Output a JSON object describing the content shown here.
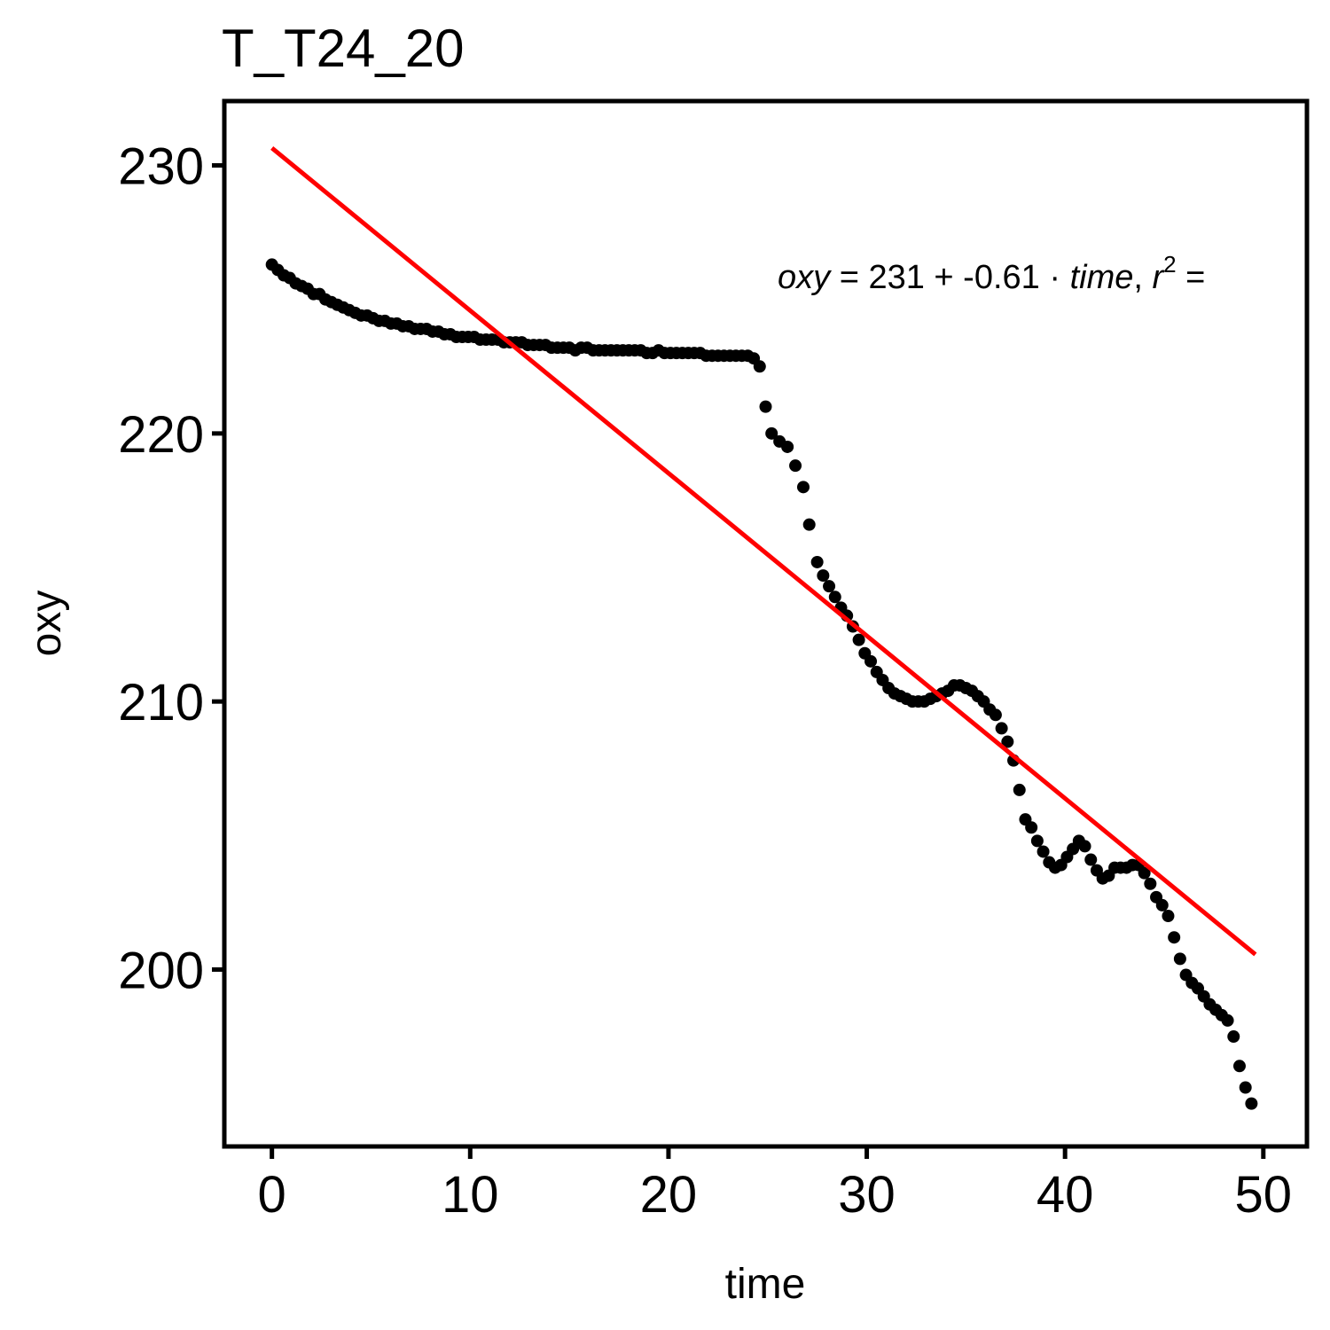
{
  "chart_data": {
    "type": "scatter",
    "title": "T_T24_20",
    "xlabel": "time",
    "ylabel": "oxy",
    "xlim": [
      -2.4,
      52.2
    ],
    "ylim": [
      193.4,
      232.4
    ],
    "x_ticks": [
      0,
      10,
      20,
      30,
      40,
      50
    ],
    "y_ticks": [
      200,
      210,
      220,
      230
    ],
    "grid": false,
    "legend": "none",
    "colors": {
      "points": "#000000",
      "fit_line": "#ff0000",
      "frame": "#000000"
    },
    "fit_line": {
      "intercept": 230.65,
      "slope": -0.6066,
      "x_range": [
        0,
        49.6
      ]
    },
    "annotation": {
      "lhs": "oxy",
      "eq": " = ",
      "intercept": "231",
      "plus": " + ",
      "slope": "-0.61",
      "dot": " · ",
      "var": "time",
      "sep": ",  ",
      "r": "r",
      "sup": "2",
      "eq2": " ="
    },
    "points": [
      [
        0,
        226.3
      ],
      [
        0.3,
        226.1
      ],
      [
        0.6,
        225.9
      ],
      [
        0.9,
        225.8
      ],
      [
        1.2,
        225.6
      ],
      [
        1.5,
        225.5
      ],
      [
        1.8,
        225.4
      ],
      [
        2.1,
        225.2
      ],
      [
        2.4,
        225.2
      ],
      [
        2.7,
        225.0
      ],
      [
        3.0,
        224.9
      ],
      [
        3.3,
        224.8
      ],
      [
        3.6,
        224.7
      ],
      [
        3.9,
        224.6
      ],
      [
        4.2,
        224.5
      ],
      [
        4.5,
        224.4
      ],
      [
        4.8,
        224.4
      ],
      [
        5.1,
        224.3
      ],
      [
        5.4,
        224.2
      ],
      [
        5.7,
        224.2
      ],
      [
        6.0,
        224.1
      ],
      [
        6.3,
        224.1
      ],
      [
        6.6,
        224.0
      ],
      [
        6.9,
        224.0
      ],
      [
        7.2,
        223.9
      ],
      [
        7.5,
        223.9
      ],
      [
        7.8,
        223.9
      ],
      [
        8.1,
        223.8
      ],
      [
        8.4,
        223.8
      ],
      [
        8.7,
        223.7
      ],
      [
        9.0,
        223.7
      ],
      [
        9.3,
        223.6
      ],
      [
        9.6,
        223.6
      ],
      [
        9.9,
        223.6
      ],
      [
        10.2,
        223.6
      ],
      [
        10.5,
        223.5
      ],
      [
        10.8,
        223.5
      ],
      [
        11.1,
        223.5
      ],
      [
        11.4,
        223.5
      ],
      [
        11.7,
        223.4
      ],
      [
        12.0,
        223.4
      ],
      [
        12.3,
        223.4
      ],
      [
        12.6,
        223.4
      ],
      [
        12.9,
        223.3
      ],
      [
        13.2,
        223.3
      ],
      [
        13.5,
        223.3
      ],
      [
        13.8,
        223.3
      ],
      [
        14.1,
        223.2
      ],
      [
        14.4,
        223.2
      ],
      [
        14.7,
        223.2
      ],
      [
        15.0,
        223.2
      ],
      [
        15.3,
        223.1
      ],
      [
        15.6,
        223.2
      ],
      [
        15.9,
        223.2
      ],
      [
        16.2,
        223.1
      ],
      [
        16.5,
        223.1
      ],
      [
        16.8,
        223.1
      ],
      [
        17.1,
        223.1
      ],
      [
        17.4,
        223.1
      ],
      [
        17.7,
        223.1
      ],
      [
        18.0,
        223.1
      ],
      [
        18.3,
        223.1
      ],
      [
        18.6,
        223.1
      ],
      [
        18.9,
        223.0
      ],
      [
        19.2,
        223.0
      ],
      [
        19.5,
        223.1
      ],
      [
        19.8,
        223.0
      ],
      [
        20.1,
        223.0
      ],
      [
        20.4,
        223.0
      ],
      [
        20.7,
        223.0
      ],
      [
        21.0,
        223.0
      ],
      [
        21.3,
        223.0
      ],
      [
        21.6,
        223.0
      ],
      [
        21.9,
        222.9
      ],
      [
        22.2,
        222.9
      ],
      [
        22.5,
        222.9
      ],
      [
        22.8,
        222.9
      ],
      [
        23.1,
        222.9
      ],
      [
        23.4,
        222.9
      ],
      [
        23.7,
        222.9
      ],
      [
        24.0,
        222.9
      ],
      [
        24.3,
        222.8
      ],
      [
        24.6,
        222.5
      ],
      [
        24.9,
        221.0
      ],
      [
        25.2,
        220.0
      ],
      [
        25.6,
        219.7
      ],
      [
        26.0,
        219.5
      ],
      [
        26.4,
        218.8
      ],
      [
        26.8,
        218.0
      ],
      [
        27.1,
        216.6
      ],
      [
        27.5,
        215.2
      ],
      [
        27.8,
        214.7
      ],
      [
        28.1,
        214.3
      ],
      [
        28.4,
        213.9
      ],
      [
        28.7,
        213.5
      ],
      [
        29.0,
        213.2
      ],
      [
        29.3,
        212.8
      ],
      [
        29.6,
        212.3
      ],
      [
        29.9,
        211.8
      ],
      [
        30.2,
        211.5
      ],
      [
        30.5,
        211.1
      ],
      [
        30.8,
        210.8
      ],
      [
        31.1,
        210.5
      ],
      [
        31.4,
        210.3
      ],
      [
        31.7,
        210.2
      ],
      [
        32.0,
        210.1
      ],
      [
        32.3,
        210.0
      ],
      [
        32.6,
        210.0
      ],
      [
        32.9,
        210.0
      ],
      [
        33.2,
        210.1
      ],
      [
        33.5,
        210.2
      ],
      [
        33.8,
        210.3
      ],
      [
        34.1,
        210.4
      ],
      [
        34.4,
        210.6
      ],
      [
        34.7,
        210.6
      ],
      [
        35.0,
        210.5
      ],
      [
        35.3,
        210.4
      ],
      [
        35.6,
        210.2
      ],
      [
        35.9,
        210.0
      ],
      [
        36.2,
        209.7
      ],
      [
        36.5,
        209.5
      ],
      [
        36.8,
        209.0
      ],
      [
        37.1,
        208.5
      ],
      [
        37.4,
        207.8
      ],
      [
        37.7,
        206.7
      ],
      [
        38.0,
        205.6
      ],
      [
        38.3,
        205.3
      ],
      [
        38.6,
        204.8
      ],
      [
        38.9,
        204.4
      ],
      [
        39.2,
        204.0
      ],
      [
        39.5,
        203.8
      ],
      [
        39.8,
        203.9
      ],
      [
        40.1,
        204.2
      ],
      [
        40.4,
        204.5
      ],
      [
        40.7,
        204.8
      ],
      [
        41.0,
        204.6
      ],
      [
        41.3,
        204.1
      ],
      [
        41.6,
        203.7
      ],
      [
        41.9,
        203.4
      ],
      [
        42.2,
        203.5
      ],
      [
        42.5,
        203.8
      ],
      [
        42.8,
        203.8
      ],
      [
        43.1,
        203.8
      ],
      [
        43.4,
        203.9
      ],
      [
        43.7,
        203.9
      ],
      [
        44.0,
        203.6
      ],
      [
        44.3,
        203.2
      ],
      [
        44.6,
        202.7
      ],
      [
        44.9,
        202.4
      ],
      [
        45.2,
        202.0
      ],
      [
        45.5,
        201.2
      ],
      [
        45.8,
        200.4
      ],
      [
        46.1,
        199.8
      ],
      [
        46.4,
        199.5
      ],
      [
        46.7,
        199.3
      ],
      [
        47.0,
        199.0
      ],
      [
        47.3,
        198.7
      ],
      [
        47.6,
        198.5
      ],
      [
        47.9,
        198.3
      ],
      [
        48.2,
        198.1
      ],
      [
        48.5,
        197.5
      ],
      [
        48.8,
        196.4
      ],
      [
        49.1,
        195.6
      ],
      [
        49.4,
        195.0
      ]
    ]
  }
}
